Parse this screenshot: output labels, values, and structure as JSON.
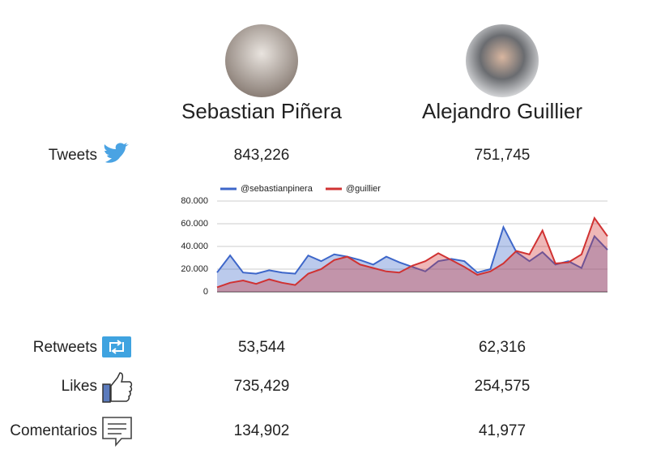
{
  "candidates": [
    {
      "name": "Sebastian Piñera"
    },
    {
      "name": "Alejandro Guillier"
    }
  ],
  "metrics": [
    {
      "label": "Tweets",
      "values": [
        "843,226",
        "751,745"
      ]
    },
    {
      "label": "Retweets",
      "values": [
        "53,544",
        "62,316"
      ]
    },
    {
      "label": "Likes",
      "values": [
        "735,429",
        "254,575"
      ]
    },
    {
      "label": "Comentarios",
      "values": [
        "134,902",
        "41,977"
      ]
    }
  ],
  "chart_data": {
    "type": "area",
    "ylim": [
      0,
      80000
    ],
    "yticks": [
      0,
      {
        "value": 20000,
        "label": "20.000"
      },
      {
        "value": 40000,
        "label": "40.000"
      },
      {
        "value": 60000,
        "label": "60.000"
      },
      {
        "value": 80000,
        "label": "80.000"
      }
    ],
    "grid": true,
    "legend": "top",
    "series": [
      {
        "name": "@sebastianpinera",
        "color": "#3d66c9",
        "values": [
          17000,
          32000,
          17000,
          16000,
          19000,
          17000,
          16000,
          32000,
          27000,
          33000,
          31000,
          28000,
          24000,
          31000,
          26000,
          22000,
          18000,
          27000,
          29000,
          27000,
          17000,
          20000,
          57000,
          35000,
          27000,
          35000,
          24000,
          27000,
          21000,
          49000,
          37000
        ]
      },
      {
        "name": "@guillier",
        "color": "#d03232",
        "values": [
          4000,
          8000,
          10000,
          7000,
          11000,
          8000,
          6000,
          16000,
          20000,
          28000,
          31000,
          24000,
          21000,
          18000,
          17000,
          23000,
          27000,
          34000,
          28000,
          22000,
          15000,
          18000,
          25000,
          36000,
          33000,
          54000,
          25000,
          26000,
          33000,
          65000,
          49000
        ]
      }
    ]
  }
}
